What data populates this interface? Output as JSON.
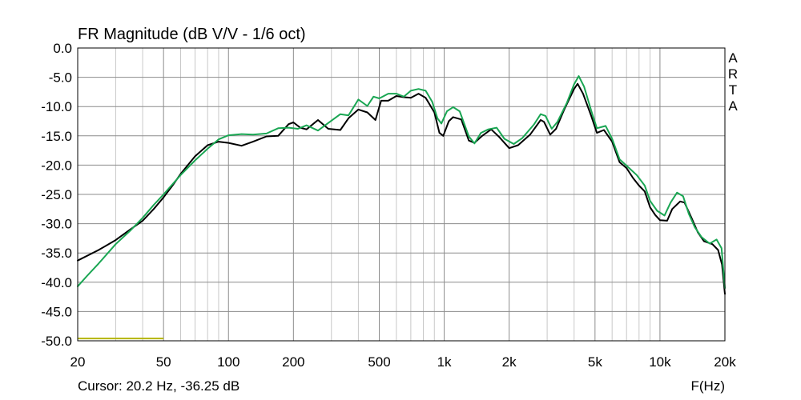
{
  "chart_data": {
    "type": "line",
    "title": "FR Magnitude (dB V/V - 1/6 oct)",
    "side_label": [
      "A",
      "R",
      "T",
      "A"
    ],
    "xlabel": "F(Hz)",
    "cursor_text": "Cursor: 20.2 Hz, -36.25 dB",
    "x_scale": "log",
    "xlim": [
      20,
      20000
    ],
    "ylim": [
      -50,
      0
    ],
    "grid": true,
    "x_ticks": [
      {
        "value": 20,
        "label": "20"
      },
      {
        "value": 50,
        "label": "50"
      },
      {
        "value": 100,
        "label": "100"
      },
      {
        "value": 200,
        "label": "200"
      },
      {
        "value": 500,
        "label": "500"
      },
      {
        "value": 1000,
        "label": "1k"
      },
      {
        "value": 2000,
        "label": "2k"
      },
      {
        "value": 5000,
        "label": "5k"
      },
      {
        "value": 10000,
        "label": "10k"
      },
      {
        "value": 20000,
        "label": "20k"
      }
    ],
    "y_ticks": [
      {
        "value": 0,
        "label": "0.0"
      },
      {
        "value": -5,
        "label": "-5.0"
      },
      {
        "value": -10,
        "label": "-10.0"
      },
      {
        "value": -15,
        "label": "-15.0"
      },
      {
        "value": -20,
        "label": "-20.0"
      },
      {
        "value": -25,
        "label": "-25.0"
      },
      {
        "value": -30,
        "label": "-30.0"
      },
      {
        "value": -35,
        "label": "-35.0"
      },
      {
        "value": -40,
        "label": "-40.0"
      },
      {
        "value": -45,
        "label": "-45.0"
      },
      {
        "value": -50,
        "label": "-50.0"
      }
    ],
    "marker": {
      "x": [
        20,
        50
      ],
      "y": -49.6,
      "color": "#b5b500"
    },
    "series": [
      {
        "color": "#000000",
        "points": [
          [
            20,
            -36.3
          ],
          [
            25,
            -34.5
          ],
          [
            30,
            -32.8
          ],
          [
            35,
            -31
          ],
          [
            40,
            -29.5
          ],
          [
            45,
            -27.5
          ],
          [
            50,
            -25.5
          ],
          [
            55,
            -23.5
          ],
          [
            60,
            -21.5
          ],
          [
            70,
            -18.5
          ],
          [
            80,
            -16.6
          ],
          [
            90,
            -16
          ],
          [
            100,
            -16.2
          ],
          [
            115,
            -16.7
          ],
          [
            130,
            -16
          ],
          [
            150,
            -15.1
          ],
          [
            170,
            -15
          ],
          [
            190,
            -13
          ],
          [
            200,
            -12.7
          ],
          [
            215,
            -13.6
          ],
          [
            230,
            -13.9
          ],
          [
            260,
            -12.3
          ],
          [
            290,
            -13.8
          ],
          [
            330,
            -14
          ],
          [
            360,
            -12
          ],
          [
            400,
            -10.5
          ],
          [
            440,
            -11
          ],
          [
            480,
            -12.3
          ],
          [
            510,
            -9
          ],
          [
            550,
            -9
          ],
          [
            600,
            -8.2
          ],
          [
            650,
            -8.4
          ],
          [
            700,
            -8.5
          ],
          [
            760,
            -7.8
          ],
          [
            820,
            -8.5
          ],
          [
            900,
            -11
          ],
          [
            950,
            -14.5
          ],
          [
            990,
            -15
          ],
          [
            1050,
            -12.5
          ],
          [
            1100,
            -11.8
          ],
          [
            1200,
            -12.2
          ],
          [
            1300,
            -15.8
          ],
          [
            1380,
            -16.2
          ],
          [
            1500,
            -15
          ],
          [
            1650,
            -13.9
          ],
          [
            1800,
            -15.2
          ],
          [
            2000,
            -17.1
          ],
          [
            2200,
            -16.6
          ],
          [
            2500,
            -14.8
          ],
          [
            2800,
            -12.3
          ],
          [
            2900,
            -12.6
          ],
          [
            3100,
            -14.8
          ],
          [
            3300,
            -13.8
          ],
          [
            3600,
            -10.5
          ],
          [
            4000,
            -7
          ],
          [
            4150,
            -6.1
          ],
          [
            4400,
            -7.8
          ],
          [
            4800,
            -11.6
          ],
          [
            5100,
            -14.5
          ],
          [
            5500,
            -14
          ],
          [
            6000,
            -16
          ],
          [
            6500,
            -19.5
          ],
          [
            7000,
            -20.5
          ],
          [
            7500,
            -22.2
          ],
          [
            8000,
            -23.5
          ],
          [
            8500,
            -24.5
          ],
          [
            9000,
            -27.2
          ],
          [
            9500,
            -28.5
          ],
          [
            10000,
            -29.4
          ],
          [
            10800,
            -29.5
          ],
          [
            11400,
            -27.5
          ],
          [
            12400,
            -26.2
          ],
          [
            13000,
            -26.4
          ],
          [
            14000,
            -29
          ],
          [
            15000,
            -31.5
          ],
          [
            16000,
            -33
          ],
          [
            17500,
            -33.5
          ],
          [
            18600,
            -34.5
          ],
          [
            19400,
            -37
          ],
          [
            20000,
            -42
          ]
        ]
      },
      {
        "color": "#1aa653",
        "points": [
          [
            20,
            -40.7
          ],
          [
            22,
            -39
          ],
          [
            25,
            -36.8
          ],
          [
            30,
            -33.5
          ],
          [
            35,
            -31.2
          ],
          [
            40,
            -29
          ],
          [
            45,
            -26.8
          ],
          [
            50,
            -25
          ],
          [
            60,
            -21.7
          ],
          [
            70,
            -19.2
          ],
          [
            80,
            -17.2
          ],
          [
            90,
            -15.6
          ],
          [
            100,
            -14.9
          ],
          [
            115,
            -14.7
          ],
          [
            130,
            -14.8
          ],
          [
            150,
            -14.6
          ],
          [
            170,
            -13.7
          ],
          [
            190,
            -13.6
          ],
          [
            210,
            -13.8
          ],
          [
            230,
            -13.2
          ],
          [
            260,
            -14.1
          ],
          [
            300,
            -12.4
          ],
          [
            330,
            -11.3
          ],
          [
            360,
            -11.5
          ],
          [
            400,
            -8.8
          ],
          [
            440,
            -9.9
          ],
          [
            470,
            -8.3
          ],
          [
            500,
            -8.6
          ],
          [
            550,
            -7.8
          ],
          [
            600,
            -7.8
          ],
          [
            650,
            -8.3
          ],
          [
            700,
            -7.3
          ],
          [
            760,
            -7
          ],
          [
            820,
            -7.3
          ],
          [
            880,
            -9.2
          ],
          [
            930,
            -12
          ],
          [
            970,
            -12.9
          ],
          [
            1030,
            -10.8
          ],
          [
            1100,
            -10.1
          ],
          [
            1180,
            -10.8
          ],
          [
            1300,
            -15.1
          ],
          [
            1380,
            -16.3
          ],
          [
            1480,
            -14.5
          ],
          [
            1600,
            -13.9
          ],
          [
            1750,
            -13.6
          ],
          [
            1900,
            -15.5
          ],
          [
            2100,
            -16.4
          ],
          [
            2300,
            -15.4
          ],
          [
            2600,
            -13.1
          ],
          [
            2800,
            -11.3
          ],
          [
            2950,
            -11.6
          ],
          [
            3150,
            -13.8
          ],
          [
            3350,
            -12.6
          ],
          [
            3700,
            -9.4
          ],
          [
            4000,
            -6.2
          ],
          [
            4200,
            -4.8
          ],
          [
            4450,
            -6.6
          ],
          [
            4800,
            -10.7
          ],
          [
            5100,
            -13.7
          ],
          [
            5600,
            -13.3
          ],
          [
            6000,
            -15.5
          ],
          [
            6500,
            -19
          ],
          [
            7200,
            -20.5
          ],
          [
            7800,
            -21.7
          ],
          [
            8500,
            -23.5
          ],
          [
            9000,
            -26.1
          ],
          [
            9700,
            -27.8
          ],
          [
            10500,
            -28.6
          ],
          [
            11200,
            -26.4
          ],
          [
            12000,
            -24.7
          ],
          [
            12800,
            -25.3
          ],
          [
            13600,
            -28.3
          ],
          [
            14500,
            -30.6
          ],
          [
            15600,
            -32.3
          ],
          [
            17000,
            -33.4
          ],
          [
            18300,
            -32.7
          ],
          [
            19300,
            -34.2
          ],
          [
            20000,
            -41
          ]
        ]
      }
    ]
  }
}
